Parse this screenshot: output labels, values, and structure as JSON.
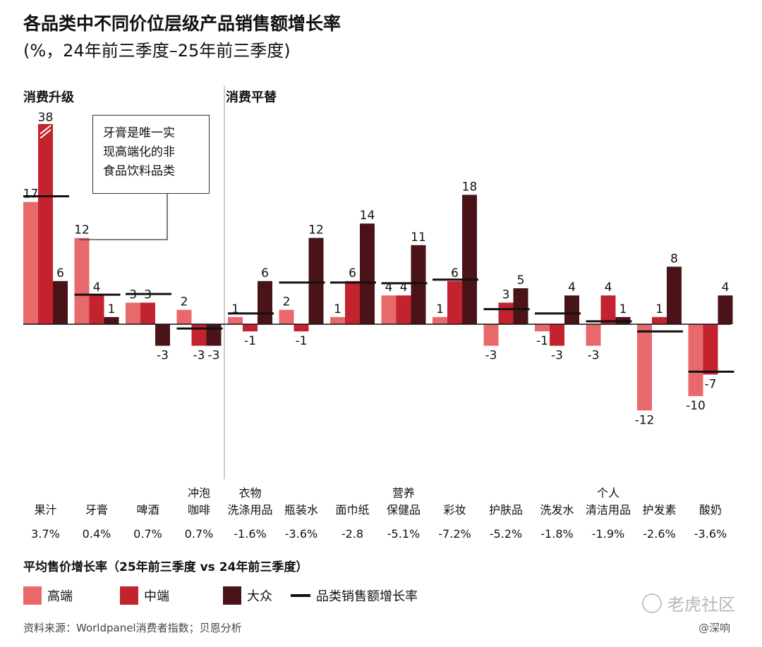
{
  "title": "各品类中不同价位层级产品销售额增长率",
  "subtitle": "(%，24年前三季度–25年前三季度)",
  "panels": {
    "left": "消费升级",
    "right": "消费平替"
  },
  "callout": {
    "lines": [
      "牙膏是唯一实",
      "现高端化的非",
      "食品饮料品类"
    ]
  },
  "colors": {
    "high": "#E8696B",
    "mid": "#C3222F",
    "mass": "#4A1318",
    "category_line": "#111111"
  },
  "chart_data": {
    "type": "bar",
    "categories": [
      [
        "果汁"
      ],
      [
        "牙膏"
      ],
      [
        "啤酒"
      ],
      [
        "冲泡",
        "咖啡"
      ],
      [
        "衣物",
        "洗涤用品"
      ],
      [
        "瓶装水"
      ],
      [
        "面巾纸"
      ],
      [
        "营养",
        "保健品"
      ],
      [
        "彩妆"
      ],
      [
        "护肤品"
      ],
      [
        "洗发水"
      ],
      [
        "个人",
        "清洁用品"
      ],
      [
        "护发素"
      ],
      [
        "酸奶"
      ]
    ],
    "series": [
      {
        "name": "高端",
        "values": [
          17,
          12,
          3,
          2,
          1,
          2,
          1,
          4,
          1,
          -3,
          -1,
          -3,
          -12,
          -10
        ]
      },
      {
        "name": "中端",
        "values": [
          38,
          4,
          3,
          -3,
          -1,
          -1,
          6,
          4,
          6,
          3,
          -3,
          4,
          1,
          -7
        ]
      },
      {
        "name": "大众",
        "values": [
          6,
          1,
          -3,
          -3,
          6,
          12,
          14,
          11,
          18,
          5,
          4,
          1,
          8,
          4
        ]
      }
    ],
    "category_growth": [
      17.8,
      4.1,
      4.2,
      -0.6,
      1.5,
      5.8,
      5.8,
      5.7,
      6.2,
      2.1,
      1.5,
      0.4,
      -1,
      -6.6
    ],
    "category_growth_name": "品类销售额增长率",
    "avg_price_growth": [
      "3.7%",
      "0.4%",
      "0.7%",
      "0.7%",
      "-1.6%",
      "-3.6%",
      "-2.8",
      "-5.1%",
      "-7.2%",
      "-5.2%",
      "-1.8%",
      "-1.9%",
      "-2.6%",
      "-3.6%"
    ],
    "avg_price_caption": "平均售价增长率（25年前三季度 vs 24年前三季度）",
    "panel_split_after_index": 3,
    "axis_break": {
      "category_index": 0,
      "series_index": 1
    },
    "ylim": [
      -13,
      19
    ]
  },
  "legend": [
    {
      "label": "高端",
      "kind": "swatch",
      "color": "#E8696B"
    },
    {
      "label": "中端",
      "kind": "swatch",
      "color": "#C3222F"
    },
    {
      "label": "大众",
      "kind": "swatch",
      "color": "#4A1318"
    },
    {
      "label": "品类销售额增长率",
      "kind": "line",
      "color": "#111111"
    }
  ],
  "source": "资料来源：Worldpanel消费者指数；贝恩分析",
  "watermark": {
    "main": "老虎社区",
    "sub": "@深响"
  }
}
